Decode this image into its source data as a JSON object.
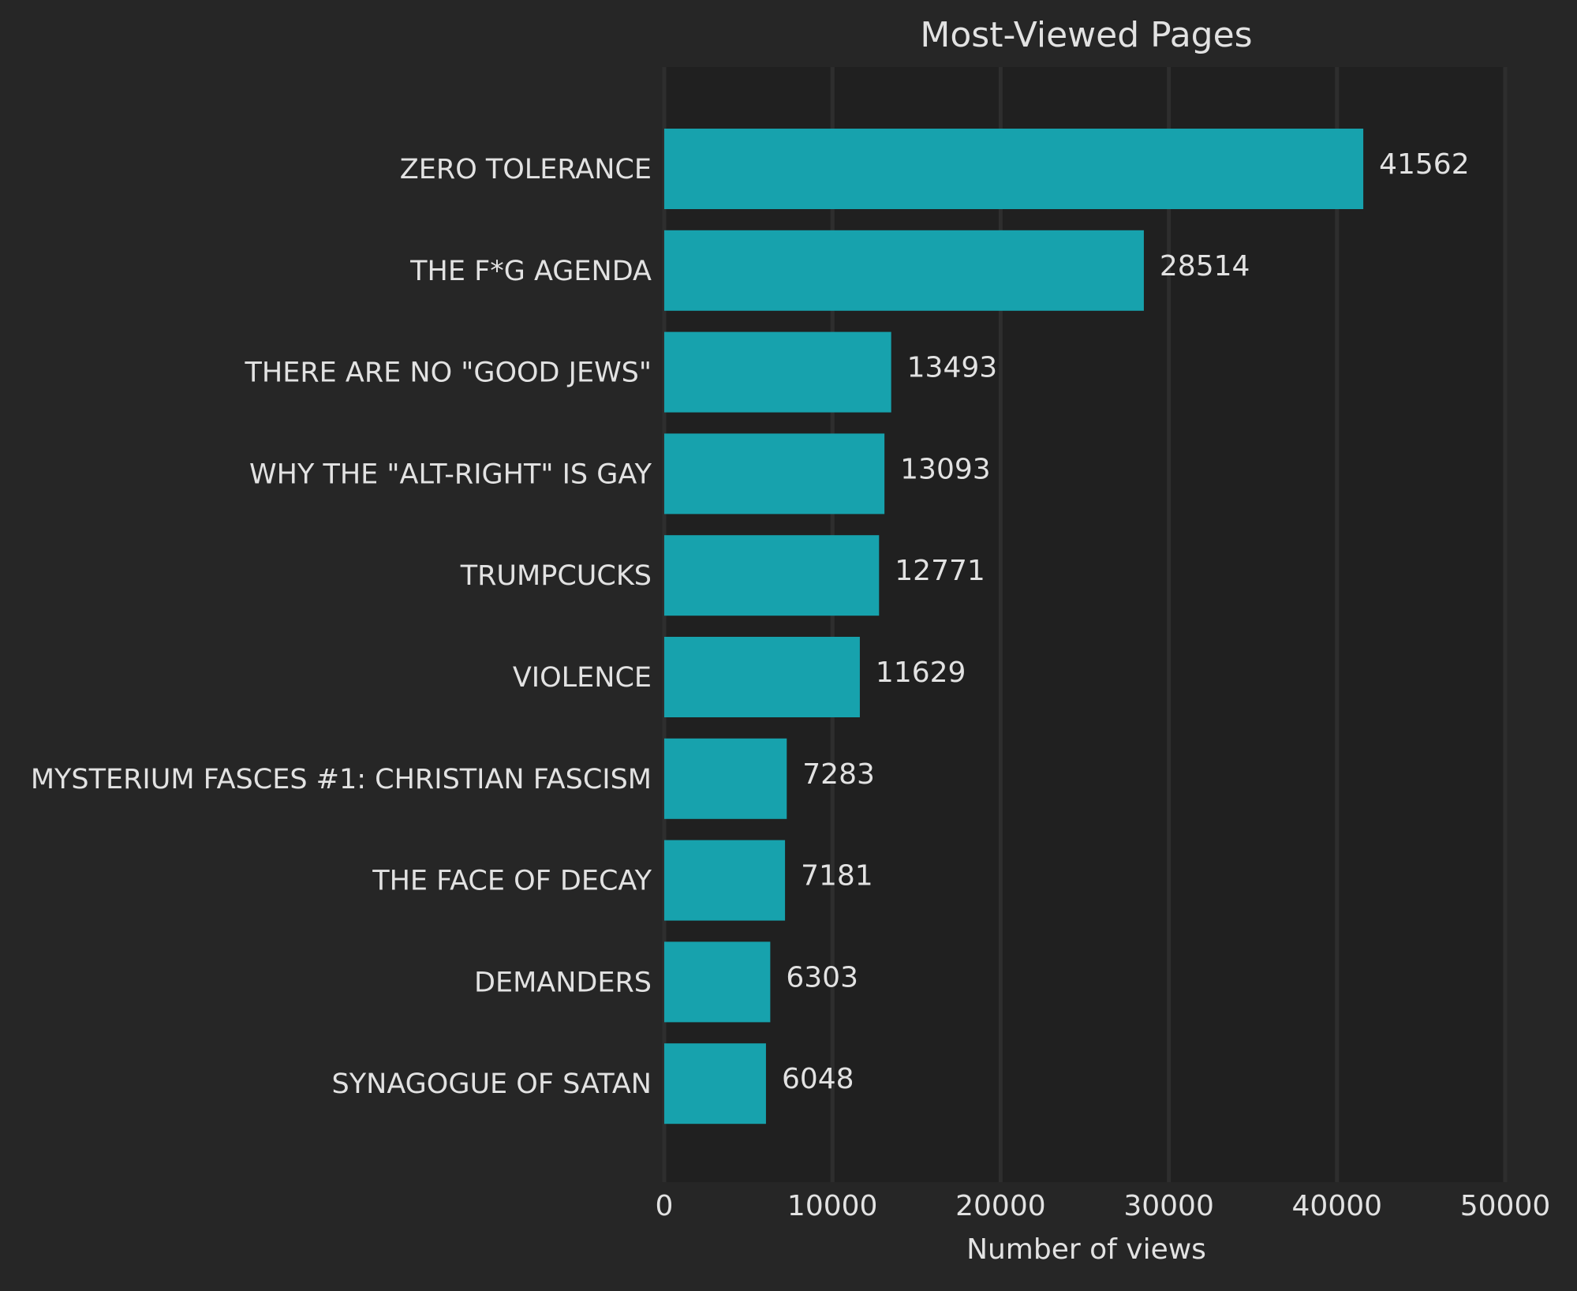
{
  "chart_data": {
    "type": "bar",
    "orientation": "horizontal",
    "title": "Most-Viewed Pages",
    "xlabel": "Number of views",
    "categories": [
      "ZERO TOLERANCE",
      "THE F*G AGENDA",
      "THERE ARE NO \"GOOD JEWS\"",
      "WHY THE \"ALT-RIGHT\" IS GAY",
      "TRUMPCUCKS",
      "VIOLENCE",
      "MYSTERIUM FASCES #1: CHRISTIAN FASCISM",
      "THE FACE OF DECAY",
      "DEMANDERS",
      "SYNAGOGUE OF SATAN"
    ],
    "values": [
      41562,
      28514,
      13493,
      13093,
      12771,
      11629,
      7283,
      7181,
      6303,
      6048
    ],
    "color": "#17a2ad",
    "xlim": [
      0,
      50000
    ],
    "xticks": [
      0,
      10000,
      20000,
      30000,
      40000,
      50000
    ],
    "grid": true
  }
}
